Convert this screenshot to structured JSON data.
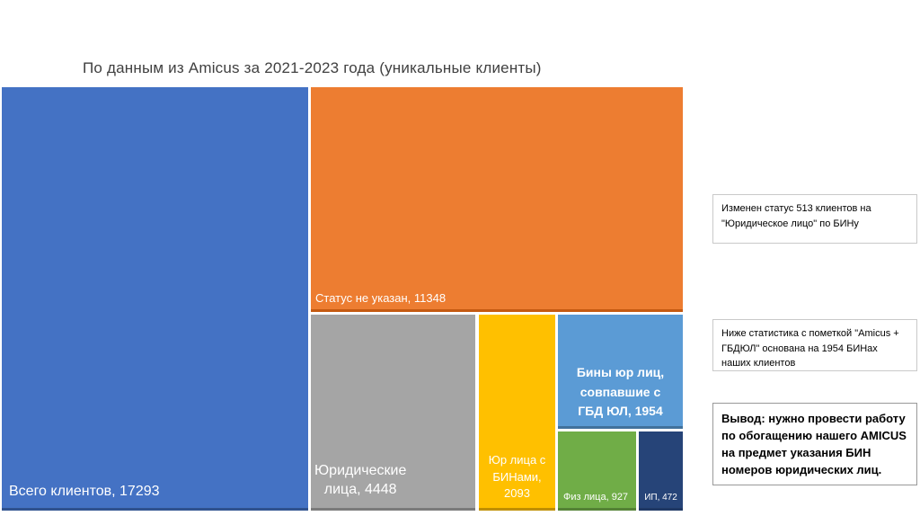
{
  "slide": {
    "title": "По данным из Amicus за 2021-2023 года (уникальные клиенты)"
  },
  "chart_data": {
    "type": "treemap",
    "title": "По данным из Amicus за 2021-2023 года (уникальные клиенты)",
    "unit": "клиенты",
    "legend": "none",
    "nodes": [
      {
        "label": "Всего клиентов",
        "value": 17293,
        "display": "Всего клиентов, 17293",
        "color": "#4472C4"
      },
      {
        "label": "Статус не указан",
        "value": 11348,
        "display": "Статус не указан, 11348",
        "color": "#ED7D31"
      },
      {
        "label": "Юридические лица",
        "value": 4448,
        "display_lines": [
          "Юридические",
          "лица, 4448"
        ],
        "color": "#A5A5A5"
      },
      {
        "label": "Юр лица с БИНами",
        "value": 2093,
        "display_lines": [
          "Юр лица с",
          "БИНами,",
          "2093"
        ],
        "color": "#FFC000"
      },
      {
        "label": "Бины юр лиц, совпавшие с ГБД ЮЛ",
        "value": 1954,
        "display_lines": [
          "Бины юр лиц,",
          "совпавшие с",
          "ГБД ЮЛ, 1954"
        ],
        "color": "#5B9BD5"
      },
      {
        "label": "Физ лица",
        "value": 927,
        "display": "Физ лица, 927",
        "color": "#70AD47"
      },
      {
        "label": "ИП",
        "value": 472,
        "display": "ИП, 472",
        "color": "#264478"
      }
    ]
  },
  "annotations": {
    "note1": "Изменен статус 513 клиентов на \"Юридическое лицо\" по БИНу",
    "note2": "Ниже статистика с пометкой \"Amicus + ГБДЮЛ\" основана на 1954 БИНах наших клиентов",
    "conclusion": "Вывод: нужно провести работу по обогащению нашего AMICUS на предмет указания БИН номеров юридических лиц."
  }
}
